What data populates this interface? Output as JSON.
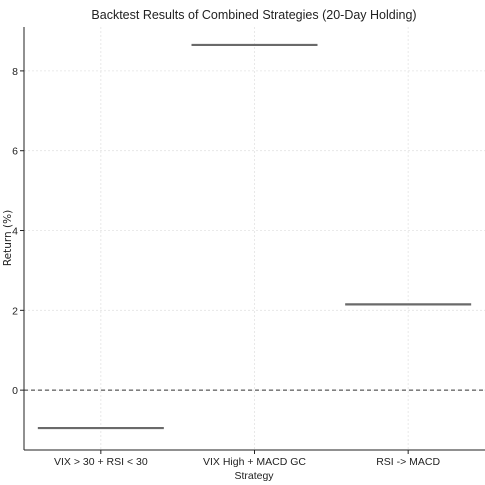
{
  "chart_data": {
    "type": "bar",
    "title": "Backtest Results of Combined Strategies (20-Day Holding)",
    "xlabel": "Strategy",
    "ylabel": "Return (%)",
    "categories": [
      "VIX > 30 + RSI < 30",
      "VIX High + MACD GC",
      "RSI -> MACD"
    ],
    "values": [
      -0.95,
      8.65,
      2.15
    ],
    "ylim": [
      -1.5,
      9.1
    ],
    "yticks": [
      0,
      2,
      4,
      6,
      8
    ],
    "reference_line": 0,
    "grid": true,
    "bar_color": "#6a6a6a"
  }
}
